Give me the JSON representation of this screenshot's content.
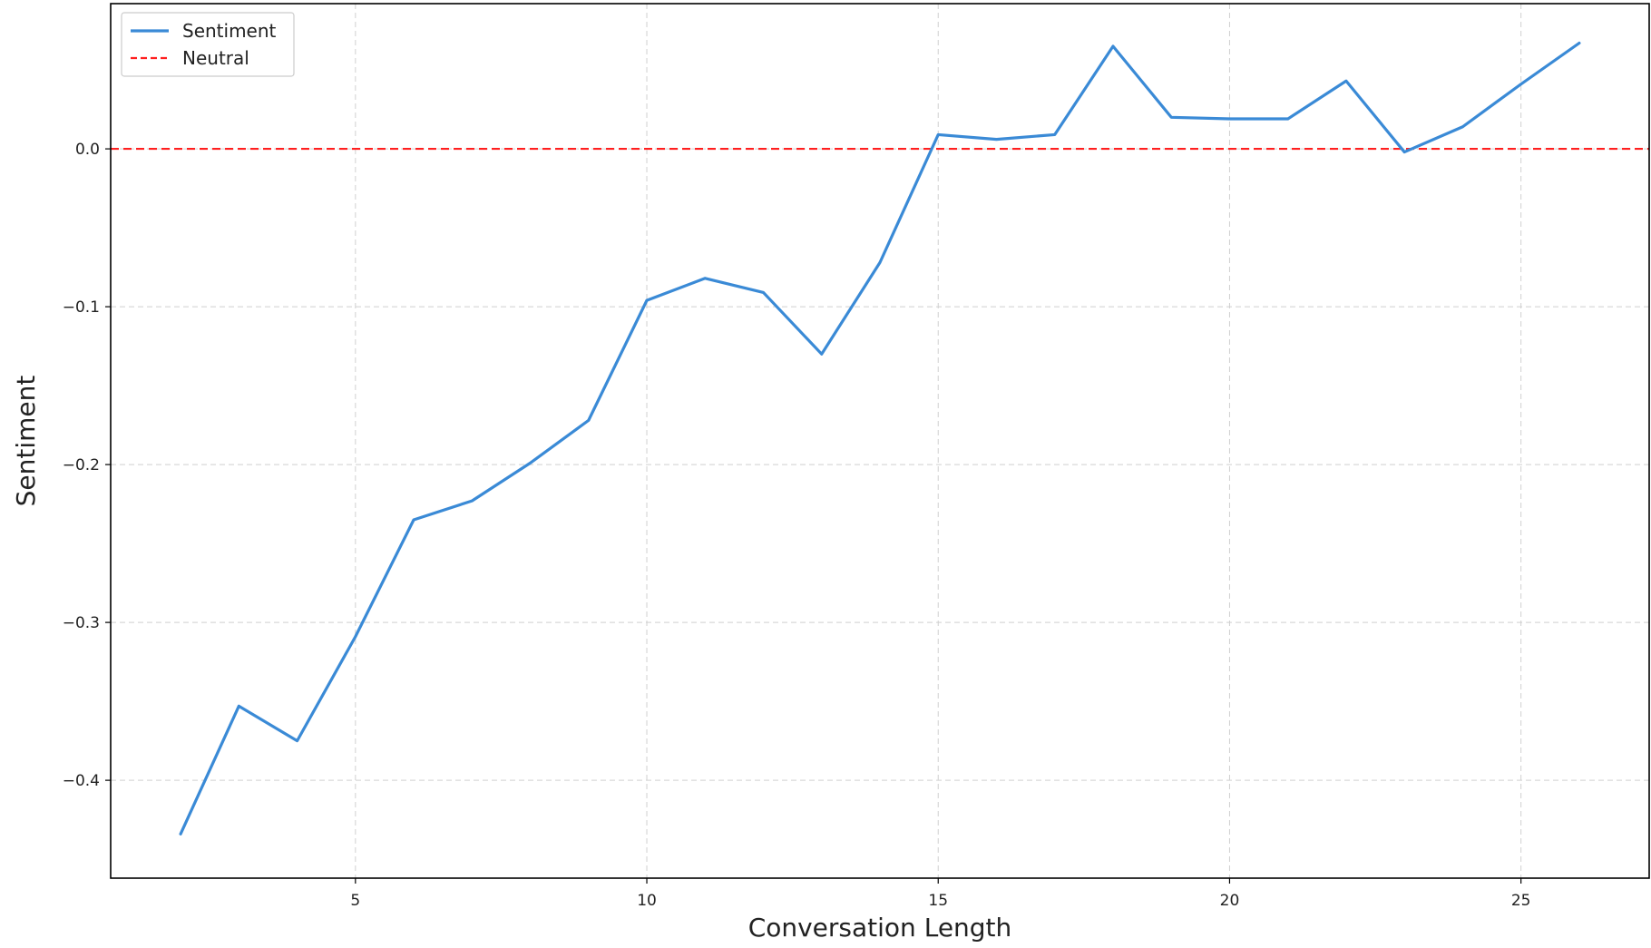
{
  "chart_data": {
    "type": "line",
    "title": "",
    "xlabel": "Conversation Length",
    "ylabel": "Sentiment",
    "xlim": [
      0.8,
      27.2
    ],
    "ylim": [
      -0.462,
      0.092
    ],
    "x_ticks": [
      5,
      10,
      15,
      20,
      25
    ],
    "y_ticks": [
      -0.4,
      -0.3,
      -0.2,
      -0.1,
      0.0
    ],
    "x_tick_labels": [
      "5",
      "10",
      "15",
      "20",
      "25"
    ],
    "y_tick_labels": [
      "−0.4",
      "−0.3",
      "−0.2",
      "−0.1",
      "0.0"
    ],
    "grid": true,
    "grid_style": "dashed",
    "legend_position": "top-left",
    "series": [
      {
        "name": "Sentiment",
        "color": "#3a8ad6",
        "style": "solid",
        "x": [
          2,
          3,
          4,
          5,
          6,
          7,
          8,
          9,
          10,
          11,
          12,
          13,
          14,
          15,
          16,
          17,
          18,
          19,
          20,
          21,
          22,
          23,
          24,
          25,
          26
        ],
        "y": [
          -0.434,
          -0.353,
          -0.375,
          -0.309,
          -0.235,
          -0.223,
          -0.199,
          -0.172,
          -0.096,
          -0.082,
          -0.091,
          -0.13,
          -0.072,
          0.009,
          0.006,
          0.009,
          0.065,
          0.02,
          0.019,
          0.019,
          0.043,
          -0.002,
          0.014,
          0.041,
          0.067
        ]
      },
      {
        "name": "Neutral",
        "color": "#ff1f1f",
        "style": "dashed",
        "y_constant": 0.0
      }
    ]
  }
}
